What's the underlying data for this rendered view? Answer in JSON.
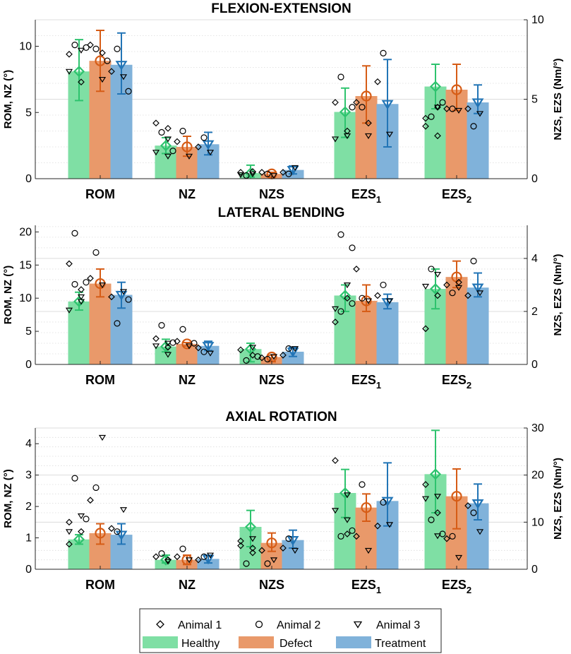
{
  "colors": {
    "healthy_fill": "#7fdfa4",
    "healthy_line": "#2ec36e",
    "defect_fill": "#e9996a",
    "defect_line": "#d65c16",
    "treatment_fill": "#80b2da",
    "treatment_line": "#2275b6",
    "grid": "#dcdcdc",
    "axis": "#262626"
  },
  "legend": {
    "markers": [
      {
        "label": "Animal 1",
        "symbol": "diamond"
      },
      {
        "label": "Animal 2",
        "symbol": "circle"
      },
      {
        "label": "Animal 3",
        "symbol": "triangle-down"
      }
    ],
    "groups": [
      {
        "label": "Healthy",
        "color": "#7fdfa4"
      },
      {
        "label": "Defect",
        "color": "#e9996a"
      },
      {
        "label": "Treatment",
        "color": "#80b2da"
      }
    ]
  },
  "chart_data": [
    {
      "type": "bar",
      "title": "FLEXION-EXTENSION",
      "ylabel_left": "ROM, NZ (°)",
      "ylabel_right": "NZS, EZS (Nm/°)",
      "ylim_left": [
        0,
        12
      ],
      "yticks_left": [
        0,
        5,
        10
      ],
      "ylim_right": [
        0,
        10
      ],
      "yticks_right": [
        0,
        5,
        10
      ],
      "categories": [
        {
          "main": "ROM",
          "sub": ""
        },
        {
          "main": "NZ",
          "sub": ""
        },
        {
          "main": "NZS",
          "sub": ""
        },
        {
          "main": "EZS",
          "sub": "1"
        },
        {
          "main": "EZS",
          "sub": "2"
        }
      ],
      "category_axis": [
        "left",
        "left",
        "right",
        "right",
        "right"
      ],
      "series": [
        {
          "name": "Healthy",
          "values": [
            8.1,
            2.5,
            0.35,
            4.2,
            5.8
          ],
          "err_low": [
            5.9,
            1.9,
            0.1,
            2.6,
            4.4
          ],
          "err_high": [
            10.5,
            3.1,
            0.85,
            5.7,
            7.2
          ]
        },
        {
          "name": "Defect",
          "values": [
            8.9,
            2.4,
            0.3,
            5.2,
            5.6
          ],
          "err_low": [
            6.6,
            1.7,
            0.1,
            3.5,
            4.3
          ],
          "err_high": [
            11.2,
            3.2,
            0.4,
            7.1,
            7.2
          ]
        },
        {
          "name": "Treatment",
          "values": [
            8.6,
            2.6,
            0.55,
            4.7,
            4.8
          ],
          "err_low": [
            6.4,
            1.8,
            0.3,
            2.0,
            4.1
          ],
          "err_high": [
            11.0,
            3.5,
            0.8,
            7.5,
            5.9
          ]
        }
      ],
      "points": [
        [
          [
            [
              9.4,
              7.3
            ],
            [
              10.1,
              9.9
            ],
            [
              9.7,
              8.1
            ]
          ],
          [
            [
              10.1,
              9.5
            ],
            [
              9.8,
              8.9
            ],
            [
              7.5
            ]
          ],
          [
            [
              8.1
            ],
            [
              9.8,
              6.6
            ],
            [
              7.7
            ]
          ]
        ],
        [
          [
            [
              4.2,
              3.8
            ],
            [
              3.5,
              2.1
            ],
            [
              1.7,
              2.0,
              3.0
            ]
          ],
          [
            [
              2.8
            ],
            [
              3.6
            ],
            [
              1.7
            ]
          ],
          [
            [
              2.4
            ],
            [
              3.1
            ],
            [
              2.0
            ]
          ]
        ],
        [
          [
            [
              0.4,
              0.45
            ],
            [
              0.2
            ],
            [
              0.3,
              0.25
            ]
          ],
          [
            [
              0.4
            ],
            [
              0.3
            ],
            [
              0.2
            ]
          ],
          [
            [
              0.4
            ],
            [
              0.3
            ],
            [
              0.7
            ]
          ]
        ],
        [
          [
            [
              4.8,
              3.0
            ],
            [
              6.4,
              4.5
            ],
            [
              2.7,
              2.5
            ]
          ],
          [
            [
              4.8,
              3.5
            ],
            [
              4.5
            ],
            [
              2.7
            ]
          ],
          [
            [
              6.1
            ],
            [
              7.9
            ],
            [
              2.8
            ]
          ]
        ],
        [
          [
            [
              3.3,
              2.7,
              3.8,
              4.5
            ],
            [
              3.9,
              4.8
            ],
            [
              4.5
            ]
          ],
          [
            [
              4.4
            ],
            [
              4.4
            ],
            [
              4.3
            ]
          ],
          [
            [
              4.4
            ],
            [
              3.3
            ],
            [
              4.1
            ]
          ]
        ]
      ]
    },
    {
      "type": "bar",
      "title": "LATERAL BENDING",
      "ylabel_left": "ROM, NZ (°)",
      "ylabel_right": "NZS, EZS (Nm/°)",
      "ylim_left": [
        0,
        21
      ],
      "yticks_left": [
        0,
        5,
        10,
        15,
        20
      ],
      "ylim_right": [
        0,
        5.25
      ],
      "yticks_right": [
        0,
        2,
        4
      ],
      "categories": [
        {
          "main": "ROM",
          "sub": ""
        },
        {
          "main": "NZ",
          "sub": ""
        },
        {
          "main": "NZS",
          "sub": ""
        },
        {
          "main": "EZS",
          "sub": "1"
        },
        {
          "main": "EZS",
          "sub": "2"
        }
      ],
      "category_axis": [
        "left",
        "left",
        "right",
        "right",
        "right"
      ],
      "series": [
        {
          "name": "Healthy",
          "values": [
            9.5,
            2.7,
            0.58,
            2.6,
            2.85
          ],
          "err_low": [
            8.2,
            1.9,
            0.1,
            2.0,
            2.1
          ],
          "err_high": [
            10.9,
            3.8,
            0.8,
            3.0,
            3.6
          ]
        },
        {
          "name": "Defect",
          "values": [
            12.2,
            3.1,
            0.28,
            2.4,
            3.3
          ],
          "err_low": [
            10.2,
            2.8,
            0.1,
            2.0,
            2.9
          ],
          "err_high": [
            14.4,
            3.3,
            0.35,
            3.0,
            3.9
          ]
        },
        {
          "name": "Treatment",
          "values": [
            10.5,
            2.8,
            0.48,
            2.35,
            2.9
          ],
          "err_low": [
            8.5,
            2.1,
            0.3,
            2.1,
            2.55
          ],
          "err_high": [
            12.4,
            3.5,
            0.65,
            2.65,
            3.45
          ]
        }
      ],
      "points": [
        [
          [
            [
              15.2,
              11.3
            ],
            [
              19.8,
              12.4,
              12.1
            ],
            [
              9.5,
              8.2,
              10.2
            ]
          ],
          [
            [
              13.0
            ],
            [
              16.9
            ],
            [
              12.0
            ]
          ],
          [
            [
              10.2
            ],
            [
              6.2,
              9.8
            ],
            [
              11.0
            ]
          ]
        ],
        [
          [
            [
              3.9,
              2.6
            ],
            [
              5.9,
              3.3
            ],
            [
              1.5,
              2.8,
              3.2
            ]
          ],
          [
            [
              3.5
            ],
            [
              5.3,
              3.2
            ],
            [
              2.8
            ]
          ],
          [
            [
              2.5
            ],
            [
              1.9
            ],
            [
              1.7
            ]
          ]
        ],
        [
          [
            [
              0.55,
              0.35
            ],
            [
              0.15,
              0.3
            ],
            [
              0.65
            ]
          ],
          [
            [
              0.25
            ],
            [
              0.2
            ],
            [
              0.3
            ]
          ],
          [
            [
              0.35
            ],
            [
              0.6
            ],
            [
              0.6
            ]
          ]
        ],
        [
          [
            [
              1.6,
              2.5
            ],
            [
              4.9,
              4.4,
              2.0,
              2.3
            ],
            [
              3.0,
              2.1
            ]
          ],
          [
            [
              3.6
            ],
            [
              2.5
            ],
            [
              2.4
            ]
          ],
          [
            [
              2.6
            ],
            [
              3.0
            ],
            [
              2.4
            ]
          ]
        ],
        [
          [
            [
              1.35,
              2.6
            ],
            [
              3.6
            ],
            [
              3.4,
              2.95
            ]
          ],
          [
            [
              3.0,
              3.1
            ],
            [
              2.7
            ],
            [
              2.9
            ]
          ],
          [
            [
              2.6
            ],
            [
              3.9
            ],
            [
              2.7
            ]
          ]
        ]
      ]
    },
    {
      "type": "bar",
      "title": "AXIAL ROTATION",
      "ylabel_left": "ROM, NZ (°)",
      "ylabel_right": "NZS, EZS (Nm/°)",
      "ylim_left": [
        0,
        4.5
      ],
      "yticks_left": [
        0,
        1,
        2,
        3,
        4
      ],
      "ylim_right": [
        0,
        30
      ],
      "yticks_right": [
        0,
        10,
        20,
        30
      ],
      "categories": [
        {
          "main": "ROM",
          "sub": ""
        },
        {
          "main": "NZ",
          "sub": ""
        },
        {
          "main": "NZS",
          "sub": ""
        },
        {
          "main": "EZS",
          "sub": "1"
        },
        {
          "main": "EZS",
          "sub": "2"
        }
      ],
      "category_axis": [
        "left",
        "left",
        "right",
        "right",
        "right"
      ],
      "series": [
        {
          "name": "Healthy",
          "values": [
            0.95,
            0.3,
            9.0,
            16.2,
            20.2
          ],
          "err_low": [
            0.8,
            0.2,
            4.8,
            11.0,
            12.0
          ],
          "err_high": [
            1.1,
            0.45,
            12.5,
            21.2,
            29.5
          ]
        },
        {
          "name": "Defect",
          "values": [
            1.15,
            0.3,
            5.6,
            13.1,
            15.5
          ],
          "err_low": [
            0.8,
            0.15,
            3.8,
            10.2,
            8.6
          ],
          "err_high": [
            1.45,
            0.45,
            7.7,
            16.0,
            21.3
          ]
        },
        {
          "name": "Treatment",
          "values": [
            1.1,
            0.33,
            6.2,
            14.5,
            14.0
          ],
          "err_low": [
            0.8,
            0.2,
            4.5,
            9.2,
            10.5
          ],
          "err_high": [
            1.45,
            0.45,
            8.3,
            22.6,
            18.1
          ]
        }
      ],
      "points": [
        [
          [
            [
              1.5,
              1.2,
              0.8
            ],
            [
              2.9,
              1.6
            ],
            [
              1.7,
              1.2
            ]
          ],
          [
            [
              2.2
            ],
            [
              2.6
            ],
            [
              4.2
            ]
          ],
          [
            [
              1.3
            ],
            [
              1.2
            ],
            [
              1.9
            ]
          ]
        ],
        [
          [
            [
              0.4,
              0.3
            ],
            [
              0.5
            ],
            [
              0.25
            ]
          ],
          [
            [
              0.4
            ],
            [
              0.65
            ],
            [
              0.3
            ]
          ],
          [
            [
              0.3
            ],
            [
              0.4
            ],
            [
              0.45
            ]
          ]
        ],
        [
          [
            [
              6.0,
              4.5,
              5.0,
              3.5
            ],
            [
              1.2
            ],
            [
              6.5
            ]
          ],
          [
            [
              4.0
            ],
            [
              1.2
            ],
            [
              2.0
            ]
          ],
          [
            [
              4.5
            ],
            [
              6.5
            ],
            [
              4.0
            ]
          ]
        ],
        [
          [
            [
              23.1,
              7.5
            ],
            [
              7.0,
              8.2
            ],
            [
              15.8,
              12.5,
              10.5
            ]
          ],
          [
            [
              7.0
            ],
            [
              18.0
            ],
            [
              4.0
            ]
          ],
          [
            [
              9.2
            ],
            [
              14.2
            ],
            [
              9.5
            ]
          ]
        ],
        [
          [
            [
              18.0,
              12.0
            ],
            [
              10.5,
              7.5
            ],
            [
              7.1,
              15.0,
              15.5
            ]
          ],
          [
            [
              6.5
            ],
            [
              7.0
            ],
            [
              2.5
            ]
          ],
          [
            [
              13.5
            ],
            [
              12.0
            ],
            [
              8.0
            ]
          ]
        ]
      ]
    }
  ]
}
